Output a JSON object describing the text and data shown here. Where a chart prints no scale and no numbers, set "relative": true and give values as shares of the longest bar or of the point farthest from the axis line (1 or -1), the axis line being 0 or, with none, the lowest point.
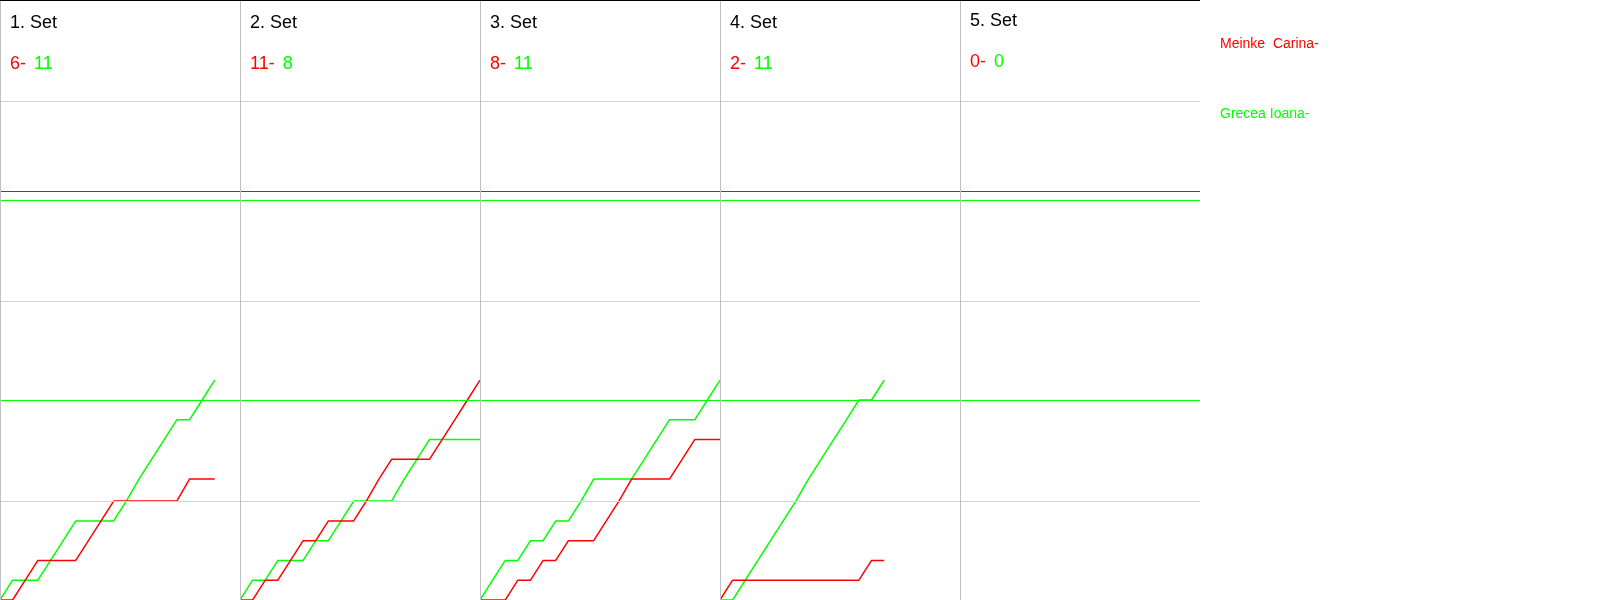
{
  "chart_data": [
    {
      "type": "line",
      "title": "1. Set",
      "annotations": [
        "6-",
        "11"
      ],
      "relative": true,
      "categories": [
        null,
        null,
        null,
        null,
        null,
        null,
        null,
        null,
        null,
        null,
        null,
        null,
        null,
        null,
        null,
        null,
        null,
        null,
        null,
        null
      ],
      "series": [
        {
          "color": "#ff0000",
          "values": [
            0,
            0,
            0.09,
            0.18,
            0.18,
            0.18,
            0.18,
            0.27,
            0.36,
            0.45,
            0.45,
            0.45,
            0.45,
            0.45,
            0.45,
            0.55,
            0.55,
            0.55,
            null,
            null
          ]
        },
        {
          "color": "#00ff00",
          "values": [
            0,
            0.09,
            0.09,
            0.09,
            0.18,
            0.27,
            0.36,
            0.36,
            0.36,
            0.36,
            0.45,
            0.55,
            0.64,
            0.73,
            0.82,
            0.82,
            0.91,
            1,
            null,
            null
          ]
        }
      ],
      "marker": "none",
      "ref_lines": [
        {
          "axis": "y",
          "value": 0.45,
          "color": "#d3d3d3"
        },
        {
          "axis": "y",
          "value": 1.36,
          "color": "#d3d3d3"
        },
        {
          "axis": "y",
          "value": 2.27,
          "color": "#d3d3d3"
        },
        {
          "axis": "y",
          "value": 1.86,
          "color": "#ff0000"
        },
        {
          "axis": "y",
          "value": 1.82,
          "color": "#00ff00"
        },
        {
          "axis": "y",
          "value": 0.91,
          "color": "#00ff00"
        }
      ]
    },
    {
      "type": "line",
      "title": "2. Set",
      "annotations": [
        "11-",
        "8"
      ],
      "relative": true,
      "categories": [
        null,
        null,
        null,
        null,
        null,
        null,
        null,
        null,
        null,
        null,
        null,
        null,
        null,
        null,
        null,
        null,
        null,
        null,
        null,
        null
      ],
      "series": [
        {
          "color": "#ff0000",
          "values": [
            0,
            0,
            0.09,
            0.09,
            0.18,
            0.27,
            0.27,
            0.36,
            0.36,
            0.36,
            0.45,
            0.55,
            0.64,
            0.64,
            0.64,
            0.64,
            0.73,
            0.82,
            0.91,
            1
          ]
        },
        {
          "color": "#00ff00",
          "values": [
            0,
            0.09,
            0.09,
            0.18,
            0.18,
            0.18,
            0.27,
            0.27,
            0.36,
            0.45,
            0.45,
            0.45,
            0.45,
            0.55,
            0.64,
            0.73,
            0.73,
            0.73,
            0.73,
            0.73
          ]
        }
      ],
      "marker": "none",
      "ref_lines": [
        {
          "axis": "y",
          "value": 0.45,
          "color": "#d3d3d3"
        },
        {
          "axis": "y",
          "value": 1.36,
          "color": "#d3d3d3"
        },
        {
          "axis": "y",
          "value": 2.27,
          "color": "#d3d3d3"
        },
        {
          "axis": "y",
          "value": 1.86,
          "color": "#ff0000"
        },
        {
          "axis": "y",
          "value": 1.82,
          "color": "#00ff00"
        },
        {
          "axis": "y",
          "value": 0.91,
          "color": "#00ff00"
        }
      ]
    },
    {
      "type": "line",
      "title": "3. Set",
      "annotations": [
        "8-",
        "11"
      ],
      "relative": true,
      "categories": [
        null,
        null,
        null,
        null,
        null,
        null,
        null,
        null,
        null,
        null,
        null,
        null,
        null,
        null,
        null,
        null,
        null,
        null,
        null,
        null
      ],
      "series": [
        {
          "color": "#ff0000",
          "values": [
            0,
            0,
            0,
            0.09,
            0.09,
            0.18,
            0.18,
            0.27,
            0.27,
            0.27,
            0.36,
            0.45,
            0.55,
            0.55,
            0.55,
            0.55,
            0.64,
            0.73,
            0.73,
            0.73
          ]
        },
        {
          "color": "#00ff00",
          "values": [
            0,
            0.09,
            0.18,
            0.18,
            0.27,
            0.27,
            0.36,
            0.36,
            0.45,
            0.55,
            0.55,
            0.55,
            0.55,
            0.64,
            0.73,
            0.82,
            0.82,
            0.82,
            0.91,
            1
          ]
        }
      ],
      "marker": "none",
      "ref_lines": [
        {
          "axis": "y",
          "value": 0.45,
          "color": "#d3d3d3"
        },
        {
          "axis": "y",
          "value": 1.36,
          "color": "#d3d3d3"
        },
        {
          "axis": "y",
          "value": 2.27,
          "color": "#d3d3d3"
        },
        {
          "axis": "y",
          "value": 1.86,
          "color": "#ff0000"
        },
        {
          "axis": "y",
          "value": 1.82,
          "color": "#00ff00"
        },
        {
          "axis": "y",
          "value": 0.91,
          "color": "#00ff00"
        }
      ]
    },
    {
      "type": "line",
      "title": "4. Set",
      "annotations": [
        "2-",
        "11"
      ],
      "relative": true,
      "categories": [
        null,
        null,
        null,
        null,
        null,
        null,
        null,
        null,
        null,
        null,
        null,
        null,
        null,
        null,
        null,
        null,
        null,
        null,
        null,
        null
      ],
      "series": [
        {
          "name": "Meinke  Carina-",
          "color": "#ff0000",
          "values": [
            0,
            0.09,
            0.09,
            0.09,
            0.09,
            0.09,
            0.09,
            0.09,
            0.09,
            0.09,
            0.09,
            0.09,
            0.18,
            0.18,
            null,
            null,
            null,
            null,
            null,
            null
          ]
        },
        {
          "name": "Grecea Ioana-",
          "color": "#00ff00",
          "values": [
            0,
            0,
            0.09,
            0.18,
            0.27,
            0.36,
            0.45,
            0.55,
            0.64,
            0.73,
            0.82,
            0.91,
            0.91,
            1,
            null,
            null,
            null,
            null,
            null,
            null
          ]
        }
      ],
      "marker": "none",
      "ref_lines": [
        {
          "axis": "y",
          "value": 0.45,
          "color": "#d3d3d3"
        },
        {
          "axis": "y",
          "value": 1.36,
          "color": "#d3d3d3"
        },
        {
          "axis": "y",
          "value": 2.27,
          "color": "#d3d3d3"
        },
        {
          "axis": "y",
          "value": 1.86,
          "color": "#ff0000"
        },
        {
          "axis": "y",
          "value": 1.82,
          "color": "#00ff00"
        },
        {
          "axis": "y",
          "value": 0.91,
          "color": "#00ff00"
        }
      ]
    },
    {
      "type": "other",
      "title": "5. Set",
      "annotations": [
        "0-",
        "0"
      ],
      "colors": [
        "#ff0000",
        "#00ff00"
      ]
    }
  ]
}
